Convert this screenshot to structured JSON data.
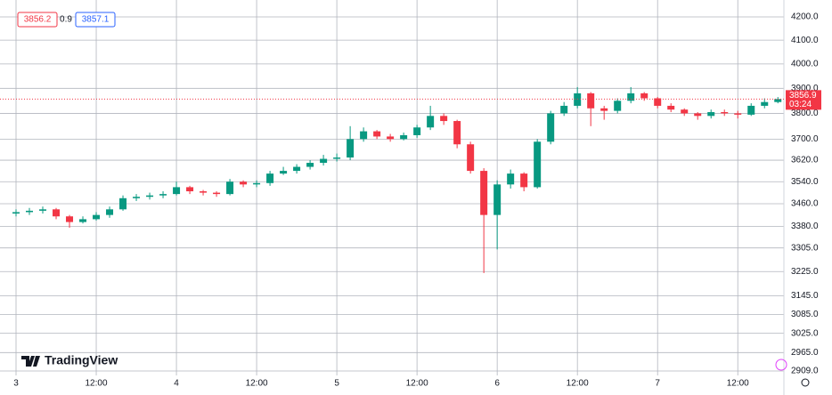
{
  "chart_data": {
    "type": "candlestick",
    "brand": "TradingView",
    "quote": {
      "sell": "3856.2",
      "spread": "0.9",
      "buy": "3857.1"
    },
    "last_price": 3856.9,
    "countdown": "03:24",
    "up_color": "#089981",
    "down_color": "#f23645",
    "grid": true,
    "log_scale": true,
    "x": [
      0,
      2,
      4,
      6,
      8,
      10,
      12,
      14,
      16,
      18,
      20,
      22,
      24,
      26,
      28,
      30,
      32,
      34,
      36,
      38,
      40,
      42,
      44,
      46,
      48,
      50,
      52,
      54,
      56,
      58,
      60,
      62,
      64,
      66,
      68,
      70,
      72,
      74,
      76,
      78,
      80,
      82,
      84,
      86,
      88,
      90,
      92,
      94,
      96,
      98,
      100,
      102,
      104,
      106,
      108,
      110,
      112,
      114
    ],
    "open": [
      3425,
      3430,
      3435,
      3440,
      3415,
      3395,
      3405,
      3420,
      3440,
      3480,
      3485,
      3490,
      3495,
      3520,
      3505,
      3500,
      3495,
      3540,
      3530,
      3535,
      3570,
      3580,
      3595,
      3610,
      3625,
      3630,
      3700,
      3730,
      3710,
      3700,
      3715,
      3745,
      3790,
      3770,
      3680,
      3580,
      3420,
      3530,
      3570,
      3520,
      3690,
      3800,
      3830,
      3880,
      3820,
      3810,
      3850,
      3880,
      3860,
      3830,
      3815,
      3800,
      3790,
      3805,
      3800,
      3795,
      3830,
      3845
    ],
    "high": [
      3440,
      3445,
      3450,
      3445,
      3420,
      3415,
      3430,
      3450,
      3490,
      3495,
      3500,
      3505,
      3540,
      3525,
      3510,
      3505,
      3550,
      3545,
      3545,
      3580,
      3595,
      3605,
      3620,
      3640,
      3645,
      3750,
      3745,
      3735,
      3720,
      3725,
      3755,
      3830,
      3800,
      3775,
      3690,
      3590,
      3545,
      3585,
      3575,
      3700,
      3810,
      3845,
      3905,
      3885,
      3830,
      3860,
      3905,
      3885,
      3865,
      3840,
      3820,
      3805,
      3815,
      3815,
      3810,
      3840,
      3860,
      3865
    ],
    "low": [
      3415,
      3420,
      3425,
      3405,
      3375,
      3390,
      3400,
      3410,
      3435,
      3470,
      3475,
      3480,
      3490,
      3495,
      3490,
      3485,
      3490,
      3520,
      3520,
      3525,
      3565,
      3570,
      3585,
      3600,
      3615,
      3620,
      3690,
      3700,
      3690,
      3695,
      3705,
      3735,
      3755,
      3665,
      3570,
      3220,
      3300,
      3515,
      3505,
      3515,
      3680,
      3790,
      3820,
      3750,
      3775,
      3800,
      3840,
      3850,
      3820,
      3805,
      3790,
      3775,
      3780,
      3790,
      3780,
      3790,
      3820,
      3840
    ],
    "close": [
      3430,
      3435,
      3440,
      3415,
      3395,
      3405,
      3420,
      3440,
      3480,
      3485,
      3490,
      3495,
      3520,
      3505,
      3500,
      3495,
      3540,
      3530,
      3535,
      3570,
      3580,
      3595,
      3610,
      3625,
      3630,
      3700,
      3730,
      3710,
      3700,
      3715,
      3745,
      3790,
      3770,
      3680,
      3580,
      3420,
      3530,
      3570,
      3520,
      3690,
      3800,
      3830,
      3880,
      3820,
      3810,
      3850,
      3880,
      3860,
      3830,
      3815,
      3800,
      3790,
      3805,
      3800,
      3795,
      3830,
      3845,
      3856.9
    ],
    "xlim": [
      -2.4,
      114.9
    ],
    "xticks": [
      {
        "value": 0,
        "label": "3"
      },
      {
        "value": 12,
        "label": "12:00"
      },
      {
        "value": 24,
        "label": "4"
      },
      {
        "value": 36,
        "label": "12:00"
      },
      {
        "value": 48,
        "label": "5"
      },
      {
        "value": 60,
        "label": "12:00"
      },
      {
        "value": 72,
        "label": "6"
      },
      {
        "value": 84,
        "label": "12:00"
      },
      {
        "value": 96,
        "label": "7"
      },
      {
        "value": 108,
        "label": "12:00"
      }
    ],
    "ylim": [
      2909,
      4200
    ],
    "yticks": [
      {
        "value": 4200,
        "label": "4200.0"
      },
      {
        "value": 4100,
        "label": "4100.0"
      },
      {
        "value": 4000,
        "label": "4000.0"
      },
      {
        "value": 3900,
        "label": "3900.0"
      },
      {
        "value": 3800,
        "label": "3800.0"
      },
      {
        "value": 3700,
        "label": "3700.0"
      },
      {
        "value": 3620,
        "label": "3620.0"
      },
      {
        "value": 3540,
        "label": "3540.0"
      },
      {
        "value": 3460,
        "label": "3460.0"
      },
      {
        "value": 3380,
        "label": "3380.0"
      },
      {
        "value": 3305,
        "label": "3305.0"
      },
      {
        "value": 3225,
        "label": "3225.0"
      },
      {
        "value": 3145,
        "label": "3145.0"
      },
      {
        "value": 3085,
        "label": "3085.0"
      },
      {
        "value": 3025,
        "label": "3025.0"
      },
      {
        "value": 2965,
        "label": "2965.0"
      },
      {
        "value": 2909,
        "label": "2909.0"
      }
    ]
  }
}
